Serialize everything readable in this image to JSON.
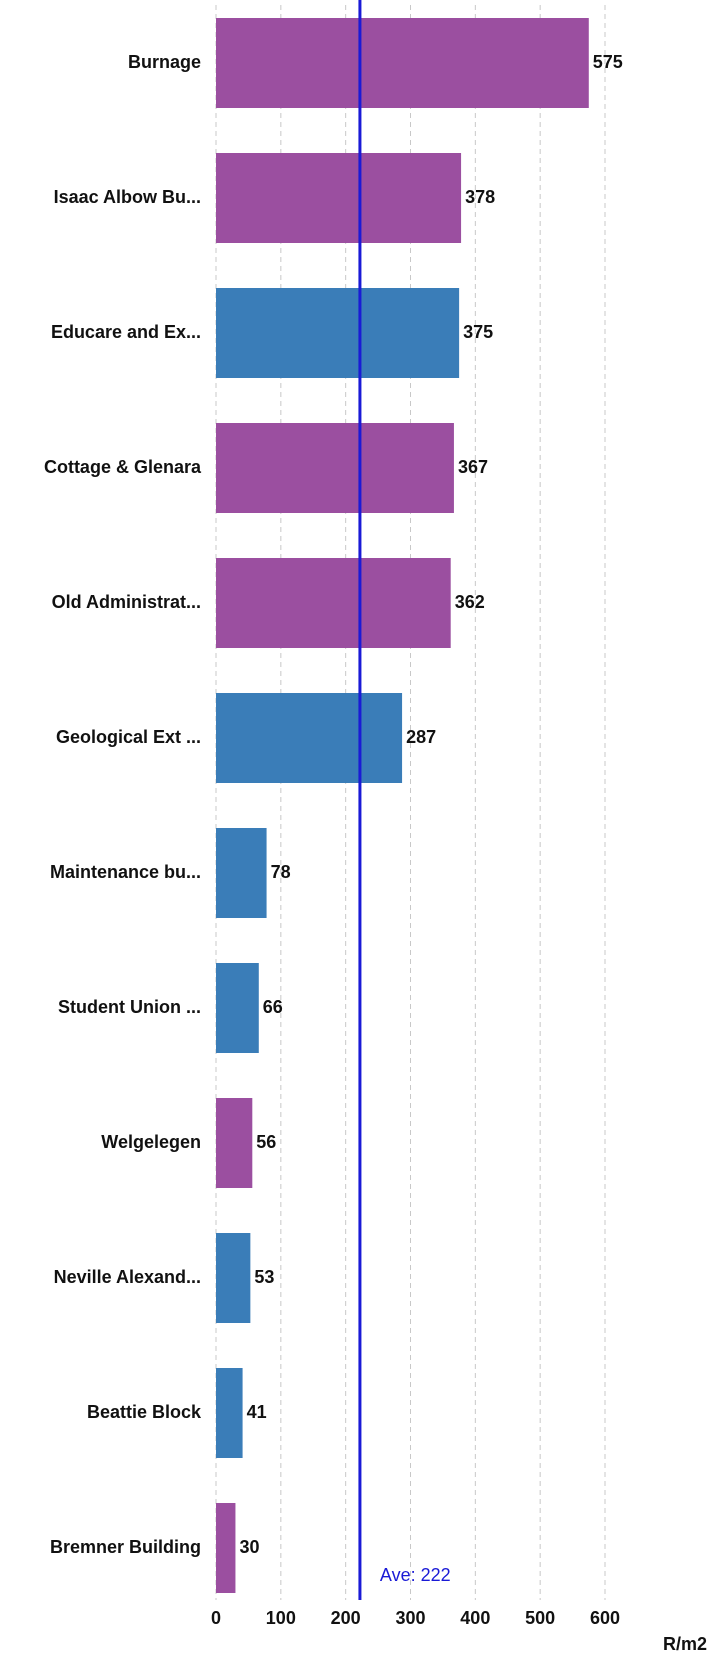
{
  "chart_data": {
    "type": "hbar",
    "categories": [
      "Burnage",
      "Isaac Albow Bu...",
      "Educare and Ex...",
      "Cottage & Glenara",
      "Old Administrat...",
      "Geological Ext ...",
      "Maintenance bu...",
      "Student Union ...",
      "Welgelegen",
      "Neville Alexand...",
      "Beattie Block",
      "Bremner Building"
    ],
    "values": [
      575,
      378,
      375,
      367,
      362,
      287,
      78,
      66,
      56,
      53,
      41,
      30
    ],
    "colors": [
      "#9b4fa0",
      "#9b4fa0",
      "#3a7db8",
      "#9b4fa0",
      "#9b4fa0",
      "#3a7db8",
      "#3a7db8",
      "#3a7db8",
      "#9b4fa0",
      "#3a7db8",
      "#3a7db8",
      "#9b4fa0"
    ],
    "xlim": [
      0,
      600
    ],
    "xticks": [
      0,
      100,
      200,
      300,
      400,
      500,
      600
    ],
    "grid": true,
    "x_label": "R/m2",
    "average": {
      "value": 222,
      "label": "Ave: 222",
      "color": "#1a1ad6"
    }
  }
}
